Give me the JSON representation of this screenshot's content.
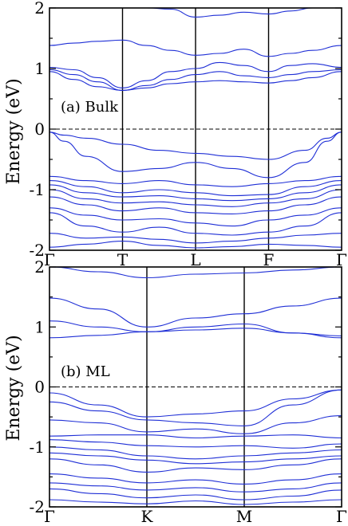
{
  "chart_data": [
    {
      "type": "line",
      "panel_label": "(a) Bulk",
      "ylabel": "Energy (eV)",
      "ylim": [
        -2,
        2
      ],
      "yticks": [
        -2,
        -1,
        0,
        1,
        2
      ],
      "k_labels": [
        "Γ",
        "T",
        "L",
        "F",
        "Γ"
      ],
      "fermi_level": 0,
      "series": [
        {
          "x": [
            0,
            0.33,
            0.43,
            0.66,
            0.85,
            1.33,
            1.66,
            2.0,
            2.33,
            2.66,
            3.0,
            3.3,
            3.6,
            4.0
          ],
          "y": [
            2.0,
            2.0,
            2.0,
            2.0,
            2.0,
            2.0,
            1.98,
            1.85,
            1.88,
            1.93,
            1.9,
            1.95,
            2.0,
            2.0
          ]
        },
        {
          "x": [
            0,
            0.33,
            0.66,
            1.0,
            1.33,
            1.66,
            2.0,
            2.33,
            2.66,
            3.0,
            3.3,
            3.6,
            4.0
          ],
          "y": [
            1.38,
            1.42,
            1.45,
            1.47,
            1.38,
            1.3,
            1.22,
            1.25,
            1.32,
            1.2,
            1.25,
            1.3,
            1.38
          ]
        },
        {
          "x": [
            0,
            0.33,
            0.66,
            1.0,
            1.33,
            1.66,
            2.0,
            2.33,
            2.66,
            3.0,
            3.3,
            3.6,
            4.0
          ],
          "y": [
            1.02,
            0.98,
            0.85,
            0.68,
            0.8,
            0.95,
            1.0,
            1.1,
            1.05,
            0.95,
            1.05,
            1.08,
            1.02
          ]
        },
        {
          "x": [
            0,
            0.33,
            0.66,
            1.0,
            1.33,
            1.66,
            2.0,
            2.33,
            2.66,
            3.0,
            3.3,
            3.6,
            4.0
          ],
          "y": [
            0.98,
            0.9,
            0.78,
            0.64,
            0.72,
            0.82,
            0.9,
            0.95,
            0.88,
            0.85,
            0.9,
            0.95,
            0.98
          ]
        },
        {
          "x": [
            0,
            0.33,
            0.66,
            1.0,
            1.33,
            1.66,
            2.0,
            2.33,
            2.66,
            3.0,
            3.3,
            3.6,
            4.0
          ],
          "y": [
            0.95,
            0.82,
            0.7,
            0.64,
            0.68,
            0.75,
            0.78,
            0.8,
            0.78,
            0.76,
            0.8,
            0.85,
            0.95
          ]
        },
        {
          "x": [
            0,
            0.2,
            0.5,
            1.0,
            1.5,
            2.0,
            2.5,
            3.0,
            3.5,
            3.8,
            4.0
          ],
          "y": [
            -0.05,
            -0.1,
            -0.15,
            -0.25,
            -0.35,
            -0.4,
            -0.45,
            -0.5,
            -0.35,
            -0.15,
            -0.05
          ]
        },
        {
          "x": [
            0,
            0.2,
            0.5,
            1.0,
            1.5,
            2.0,
            2.5,
            3.0,
            3.5,
            3.8,
            4.0
          ],
          "y": [
            -0.05,
            -0.2,
            -0.45,
            -0.7,
            -0.65,
            -0.55,
            -0.65,
            -0.8,
            -0.55,
            -0.2,
            -0.05
          ]
        },
        {
          "x": [
            0,
            0.5,
            1.0,
            1.5,
            2.0,
            2.5,
            3.0,
            3.5,
            4.0
          ],
          "y": [
            -0.78,
            -0.85,
            -0.9,
            -0.85,
            -0.92,
            -0.95,
            -0.9,
            -0.85,
            -0.78
          ]
        },
        {
          "x": [
            0,
            0.5,
            1.0,
            1.5,
            2.0,
            2.5,
            3.0,
            3.5,
            4.0
          ],
          "y": [
            -0.85,
            -0.95,
            -1.05,
            -1.0,
            -1.05,
            -1.1,
            -1.08,
            -0.95,
            -0.85
          ]
        },
        {
          "x": [
            0,
            0.5,
            1.0,
            1.5,
            2.0,
            2.5,
            3.0,
            3.5,
            4.0
          ],
          "y": [
            -0.92,
            -1.05,
            -1.12,
            -1.1,
            -1.15,
            -1.18,
            -1.15,
            -1.05,
            -0.92
          ]
        },
        {
          "x": [
            0,
            0.5,
            1.0,
            1.5,
            2.0,
            2.5,
            3.0,
            3.5,
            4.0
          ],
          "y": [
            -1.0,
            -1.15,
            -1.22,
            -1.2,
            -1.25,
            -1.28,
            -1.22,
            -1.15,
            -1.0
          ]
        },
        {
          "x": [
            0,
            0.5,
            1.0,
            1.5,
            2.0,
            2.5,
            3.0,
            3.5,
            4.0
          ],
          "y": [
            -1.12,
            -1.25,
            -1.35,
            -1.3,
            -1.38,
            -1.4,
            -1.35,
            -1.25,
            -1.12
          ]
        },
        {
          "x": [
            0,
            0.5,
            1.0,
            1.5,
            2.0,
            2.5,
            3.0,
            3.5,
            4.0
          ],
          "y": [
            -1.3,
            -1.42,
            -1.5,
            -1.48,
            -1.55,
            -1.6,
            -1.5,
            -1.42,
            -1.3
          ]
        },
        {
          "x": [
            0,
            0.5,
            1.0,
            1.5,
            2.0,
            2.5,
            3.0,
            3.5,
            4.0
          ],
          "y": [
            -1.38,
            -1.6,
            -1.7,
            -1.62,
            -1.72,
            -1.75,
            -1.7,
            -1.6,
            -1.38
          ]
        },
        {
          "x": [
            0,
            0.5,
            1.0,
            1.5,
            2.0,
            2.5,
            3.0,
            3.5,
            4.0
          ],
          "y": [
            -1.72,
            -1.8,
            -1.78,
            -1.82,
            -1.88,
            -1.85,
            -1.8,
            -1.75,
            -1.72
          ]
        },
        {
          "x": [
            0,
            0.5,
            1.0,
            1.5,
            2.0,
            2.5,
            3.0,
            3.5,
            4.0
          ],
          "y": [
            -1.95,
            -1.9,
            -1.85,
            -1.92,
            -1.96,
            -1.94,
            -1.9,
            -1.92,
            -1.95
          ]
        }
      ]
    },
    {
      "type": "line",
      "panel_label": "(b) ML",
      "ylabel": "Energy (eV)",
      "ylim": [
        -2,
        2
      ],
      "yticks": [
        -2,
        -1,
        0,
        1,
        2
      ],
      "k_labels": [
        "Γ",
        "K",
        "M",
        "Γ"
      ],
      "fermi_level": 0,
      "series": [
        {
          "x": [
            0,
            0.5,
            1.0,
            1.5,
            2.0,
            2.5,
            3.0
          ],
          "y": [
            2.0,
            1.92,
            1.82,
            1.88,
            1.9,
            1.95,
            2.0
          ]
        },
        {
          "x": [
            0,
            0.5,
            1.0,
            1.5,
            2.0,
            2.5,
            3.0
          ],
          "y": [
            1.48,
            1.3,
            1.0,
            1.15,
            1.22,
            1.35,
            1.48
          ]
        },
        {
          "x": [
            0,
            0.5,
            1.0,
            1.5,
            2.0,
            2.5,
            3.0
          ],
          "y": [
            1.1,
            1.0,
            0.92,
            1.0,
            1.05,
            0.9,
            0.85
          ]
        },
        {
          "x": [
            0,
            0.5,
            1.0,
            1.5,
            2.0,
            2.5,
            3.0
          ],
          "y": [
            0.82,
            0.86,
            0.92,
            0.95,
            0.98,
            0.9,
            0.82
          ]
        },
        {
          "x": [
            0,
            0.5,
            1.0,
            1.5,
            2.0,
            2.5,
            3.0
          ],
          "y": [
            -0.1,
            -0.3,
            -0.5,
            -0.45,
            -0.4,
            -0.2,
            -0.05
          ]
        },
        {
          "x": [
            0,
            0.5,
            1.0,
            1.5,
            2.0,
            2.5,
            3.0
          ],
          "y": [
            -0.25,
            -0.4,
            -0.55,
            -0.6,
            -0.65,
            -0.3,
            -0.05
          ]
        },
        {
          "x": [
            0,
            0.5,
            1.0,
            1.5,
            2.0,
            2.5,
            3.0
          ],
          "y": [
            -0.55,
            -0.6,
            -0.75,
            -0.7,
            -0.78,
            -0.6,
            -0.48
          ]
        },
        {
          "x": [
            0,
            0.5,
            1.0,
            1.5,
            2.0,
            2.5,
            3.0
          ],
          "y": [
            -0.82,
            -0.8,
            -0.8,
            -0.85,
            -0.82,
            -0.8,
            -0.85
          ]
        },
        {
          "x": [
            0,
            0.5,
            1.0,
            1.5,
            2.0,
            2.5,
            3.0
          ],
          "y": [
            -0.88,
            -0.92,
            -0.98,
            -1.0,
            -0.98,
            -1.02,
            -0.95
          ]
        },
        {
          "x": [
            0,
            0.5,
            1.0,
            1.5,
            2.0,
            2.5,
            3.0
          ],
          "y": [
            -1.0,
            -1.05,
            -1.15,
            -1.2,
            -1.15,
            -1.1,
            -1.05
          ]
        },
        {
          "x": [
            0,
            0.5,
            1.0,
            1.5,
            2.0,
            2.5,
            3.0
          ],
          "y": [
            -1.1,
            -1.15,
            -1.22,
            -1.28,
            -1.25,
            -1.2,
            -1.15
          ]
        },
        {
          "x": [
            0,
            0.5,
            1.0,
            1.5,
            2.0,
            2.5,
            3.0
          ],
          "y": [
            -1.2,
            -1.3,
            -1.42,
            -1.35,
            -1.38,
            -1.3,
            -1.2
          ]
        },
        {
          "x": [
            0,
            0.5,
            1.0,
            1.5,
            2.0,
            2.5,
            3.0
          ],
          "y": [
            -1.45,
            -1.52,
            -1.6,
            -1.55,
            -1.62,
            -1.55,
            -1.45
          ]
        },
        {
          "x": [
            0,
            0.5,
            1.0,
            1.5,
            2.0,
            2.5,
            3.0
          ],
          "y": [
            -1.6,
            -1.65,
            -1.72,
            -1.68,
            -1.75,
            -1.7,
            -1.6
          ]
        },
        {
          "x": [
            0,
            0.5,
            1.0,
            1.5,
            2.0,
            2.5,
            3.0
          ],
          "y": [
            -1.7,
            -1.78,
            -1.85,
            -1.8,
            -1.88,
            -1.82,
            -1.72
          ]
        },
        {
          "x": [
            0,
            0.5,
            1.0,
            1.5,
            2.0,
            2.5,
            3.0
          ],
          "y": [
            -1.88,
            -1.92,
            -1.95,
            -1.9,
            -1.96,
            -1.92,
            -1.88
          ]
        }
      ]
    }
  ]
}
